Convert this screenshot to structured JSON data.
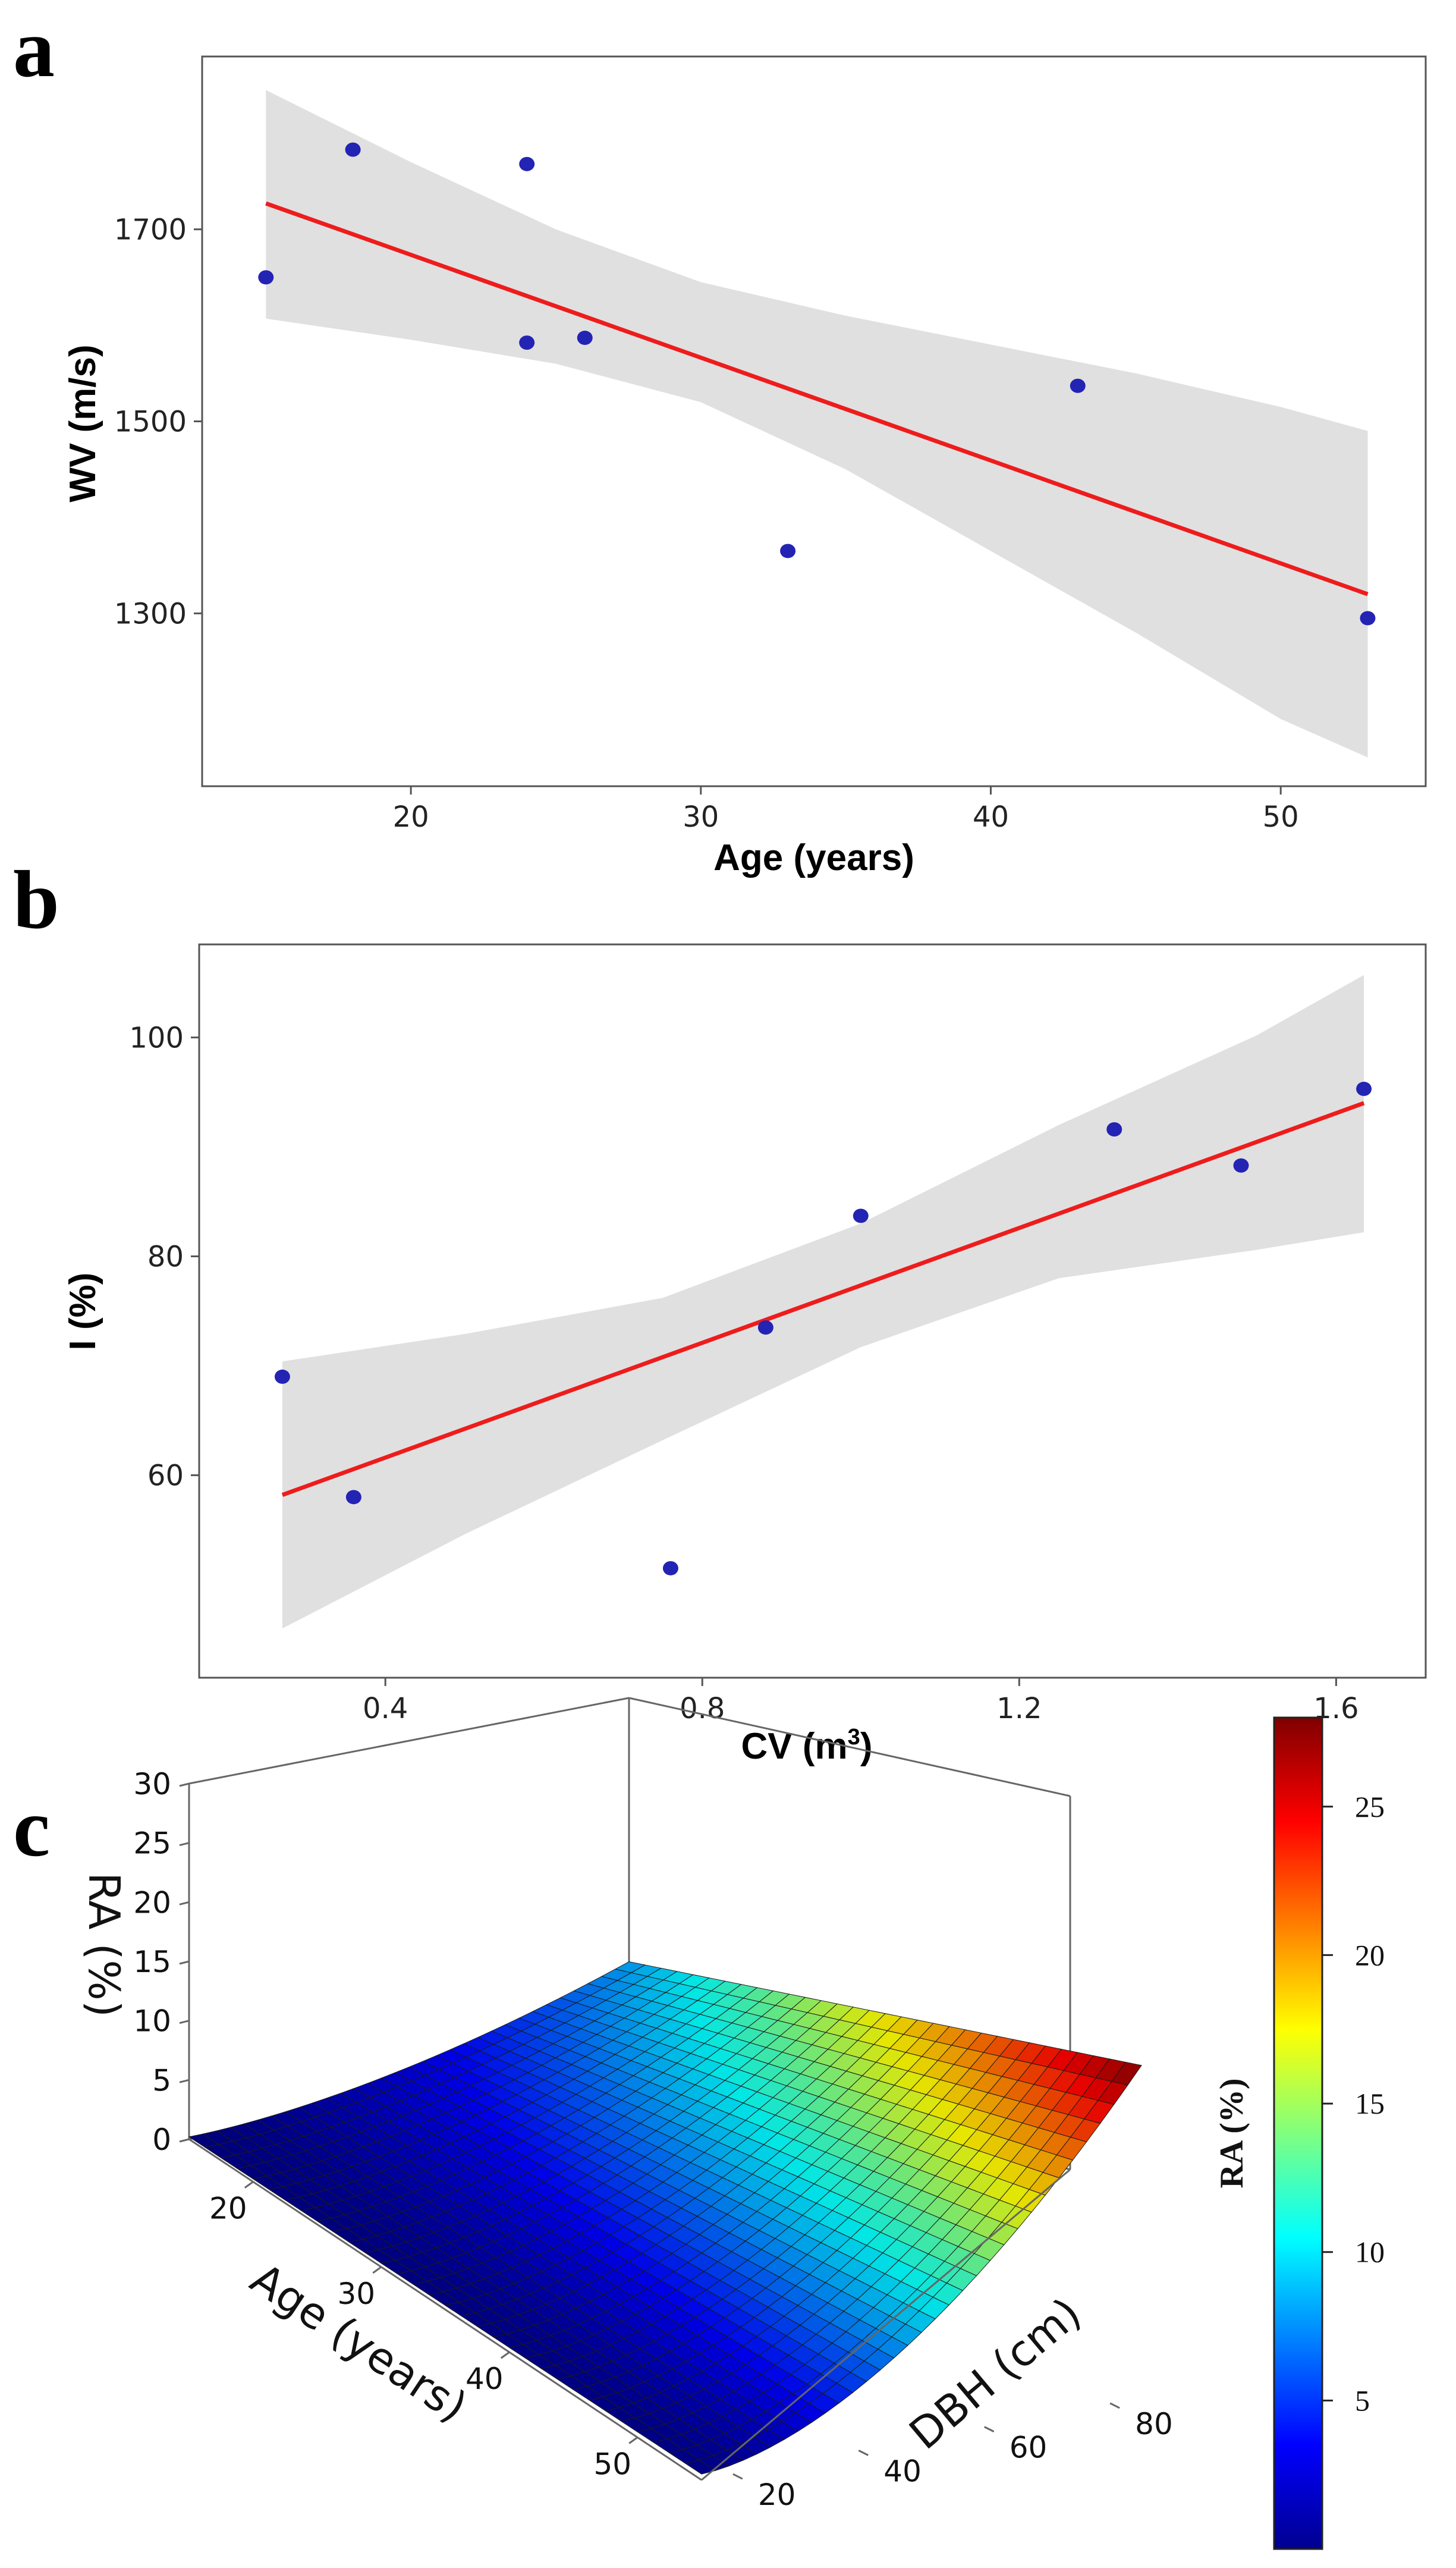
{
  "chart_data": [
    {
      "panel": "a",
      "type": "scatter",
      "title": "",
      "xlabel": "Age (years)",
      "ylabel": "WV (m/s)",
      "xlim": [
        12.8,
        55.0
      ],
      "ylim": [
        1120,
        1880
      ],
      "xticks": [
        20,
        30,
        40,
        50
      ],
      "yticks": [
        1300,
        1500,
        1700
      ],
      "points": [
        {
          "x": 15,
          "y": 1650
        },
        {
          "x": 18,
          "y": 1783
        },
        {
          "x": 24,
          "y": 1768
        },
        {
          "x": 24,
          "y": 1582
        },
        {
          "x": 26,
          "y": 1587
        },
        {
          "x": 33,
          "y": 1365
        },
        {
          "x": 43,
          "y": 1537
        },
        {
          "x": 53,
          "y": 1295
        }
      ],
      "fit": {
        "x": [
          15,
          53
        ],
        "y": [
          1727,
          1320
        ]
      },
      "band": {
        "x": [
          15,
          20,
          25,
          30,
          35,
          40,
          45,
          50,
          53
        ],
        "upper": [
          1845,
          1770,
          1700,
          1645,
          1610,
          1580,
          1550,
          1515,
          1490
        ],
        "lower": [
          1607,
          1585,
          1560,
          1520,
          1450,
          1365,
          1280,
          1190,
          1150
        ]
      },
      "grid": false,
      "colors": {
        "point": "#2323b4",
        "line": "#ee1c1c",
        "band": "#e0e0e0"
      }
    },
    {
      "panel": "b",
      "type": "scatter",
      "title": "",
      "xlabel": "CV (m",
      "xlabel_sup": "3",
      "xlabel_end": ")",
      "ylabel": "I (%)",
      "xlim": [
        0.165,
        1.713
      ],
      "ylim": [
        41.5,
        108.5
      ],
      "xticks": [
        0.4,
        0.8,
        1.2,
        1.6
      ],
      "yticks": [
        60,
        80,
        100
      ],
      "tick_text": [
        "0.4",
        "0.8",
        "1.2",
        "1.6"
      ],
      "points": [
        {
          "x": 0.27,
          "y": 69
        },
        {
          "x": 0.36,
          "y": 58
        },
        {
          "x": 0.76,
          "y": 51.5
        },
        {
          "x": 0.88,
          "y": 73.5
        },
        {
          "x": 1.0,
          "y": 83.7
        },
        {
          "x": 1.32,
          "y": 91.6
        },
        {
          "x": 1.48,
          "y": 88.3
        },
        {
          "x": 1.635,
          "y": 95.3
        }
      ],
      "fit": {
        "x": [
          0.27,
          1.635
        ],
        "y": [
          58.2,
          94.0
        ]
      },
      "band": {
        "x": [
          0.27,
          0.5,
          0.75,
          1.0,
          1.25,
          1.5,
          1.635
        ],
        "upper": [
          70.4,
          72.9,
          76.2,
          83.0,
          92.0,
          100.2,
          105.7
        ],
        "lower": [
          46.0,
          54.6,
          63.2,
          71.7,
          78.0,
          80.6,
          82.2
        ]
      },
      "grid": false,
      "colors": {
        "point": "#2323b4",
        "line": "#ee1c1c",
        "band": "#e0e0e0"
      }
    },
    {
      "panel": "c",
      "type": "surface",
      "title": "",
      "zlabel": "RA (%)",
      "xlabel": "Age (years)",
      "ylabel": "DBH (cm)",
      "xlim": [
        15,
        55
      ],
      "ylim": [
        15,
        85
      ],
      "zlim": [
        0,
        30
      ],
      "xticks": [
        20,
        30,
        40,
        50
      ],
      "yticks": [
        20,
        40,
        60,
        80
      ],
      "zticks": [
        0,
        5,
        10,
        15,
        20,
        25,
        30
      ],
      "surface_corners": {
        "age15_dbh15": 0.2,
        "age55_dbh15": 0.5,
        "age15_dbh85": 8,
        "age55_dbh85": 28
      },
      "colorbar": {
        "title": "RA (%)",
        "range": [
          0,
          28
        ],
        "ticks": [
          5,
          10,
          15,
          20,
          25
        ],
        "colormap": "jet"
      }
    }
  ]
}
